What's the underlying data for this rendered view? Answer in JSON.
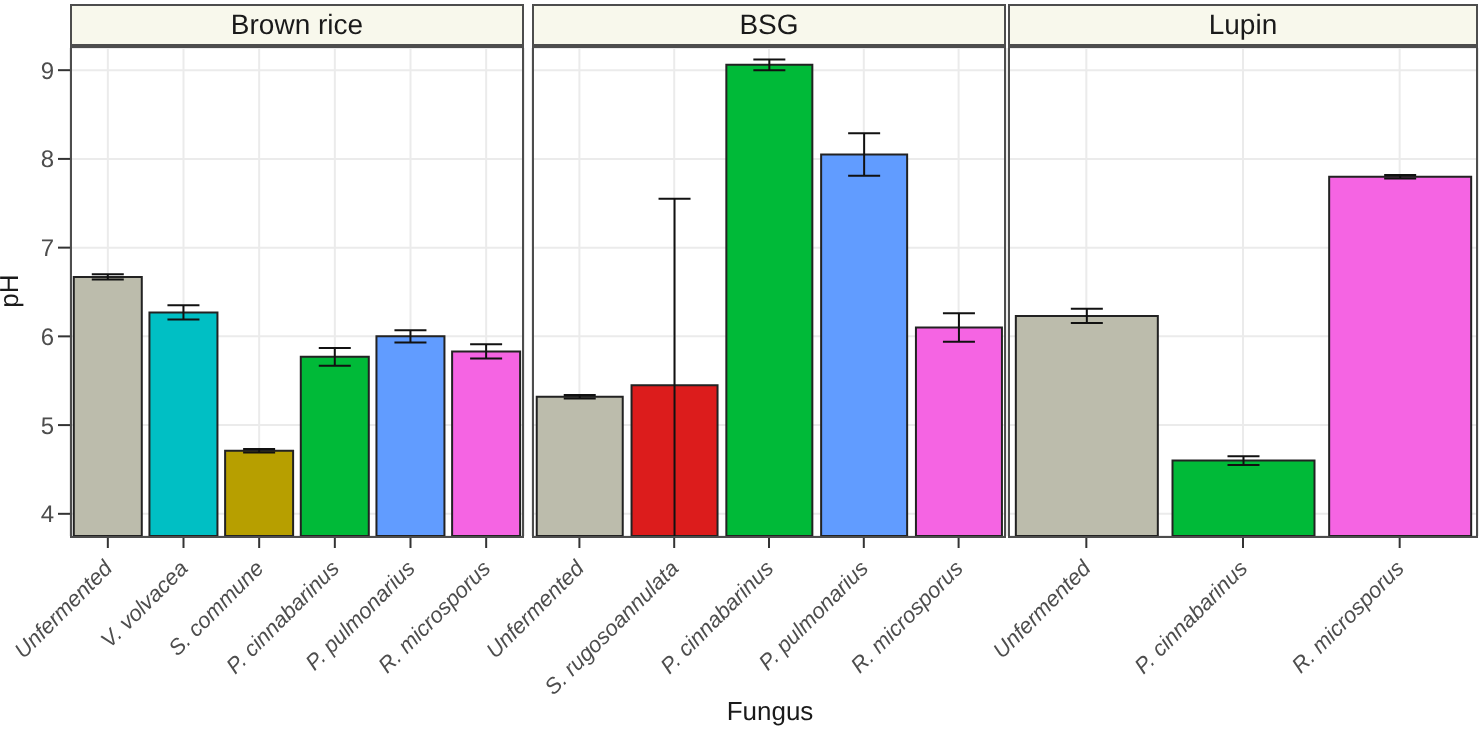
{
  "chart_data": [
    {
      "type": "bar",
      "title": "Brown rice",
      "ylabel": "pH",
      "categories": [
        "Unfermented",
        "V. volvacea",
        "S. commune",
        "P. cinnabarinus",
        "P. pulmonarius",
        "R. microsporus"
      ],
      "values": [
        6.67,
        6.27,
        4.71,
        5.77,
        6.0,
        5.83
      ],
      "errors": [
        0.03,
        0.08,
        0.02,
        0.1,
        0.07,
        0.08
      ],
      "colors": [
        "#bcbcac",
        "#00bfc4",
        "#b79f00",
        "#00ba38",
        "#619cff",
        "#f564e3"
      ],
      "ylim": [
        3.75,
        9.25
      ],
      "yticks": [
        4,
        5,
        6,
        7,
        8,
        9
      ],
      "grid": true
    },
    {
      "type": "bar",
      "title": "BSG",
      "xlabel": "Fungus",
      "categories": [
        "Unfermented",
        "S. rugosoannulata",
        "P. cinnabarinus",
        "P. pulmonarius",
        "R. microsporus"
      ],
      "values": [
        5.32,
        5.45,
        9.06,
        8.05,
        6.1
      ],
      "errors": [
        0.02,
        2.1,
        0.06,
        0.24,
        0.16
      ],
      "colors": [
        "#bcbcac",
        "#dc1c1c",
        "#00ba38",
        "#619cff",
        "#f564e3"
      ],
      "ylim": [
        3.75,
        9.25
      ],
      "yticks": [
        4,
        5,
        6,
        7,
        8,
        9
      ],
      "grid": true,
      "tick_labels": "x"
    },
    {
      "type": "bar",
      "title": "Lupin",
      "categories": [
        "Unfermented",
        "P. cinnabarinus",
        "R. microsporus"
      ],
      "values": [
        6.23,
        4.6,
        7.8
      ],
      "errors": [
        0.08,
        0.05,
        0.02
      ],
      "colors": [
        "#bcbcac",
        "#00ba38",
        "#f564e3"
      ],
      "ylim": [
        3.75,
        9.25
      ],
      "yticks": [
        4,
        5,
        6,
        7,
        8,
        9
      ],
      "grid": true,
      "tick_labels": "x"
    }
  ]
}
